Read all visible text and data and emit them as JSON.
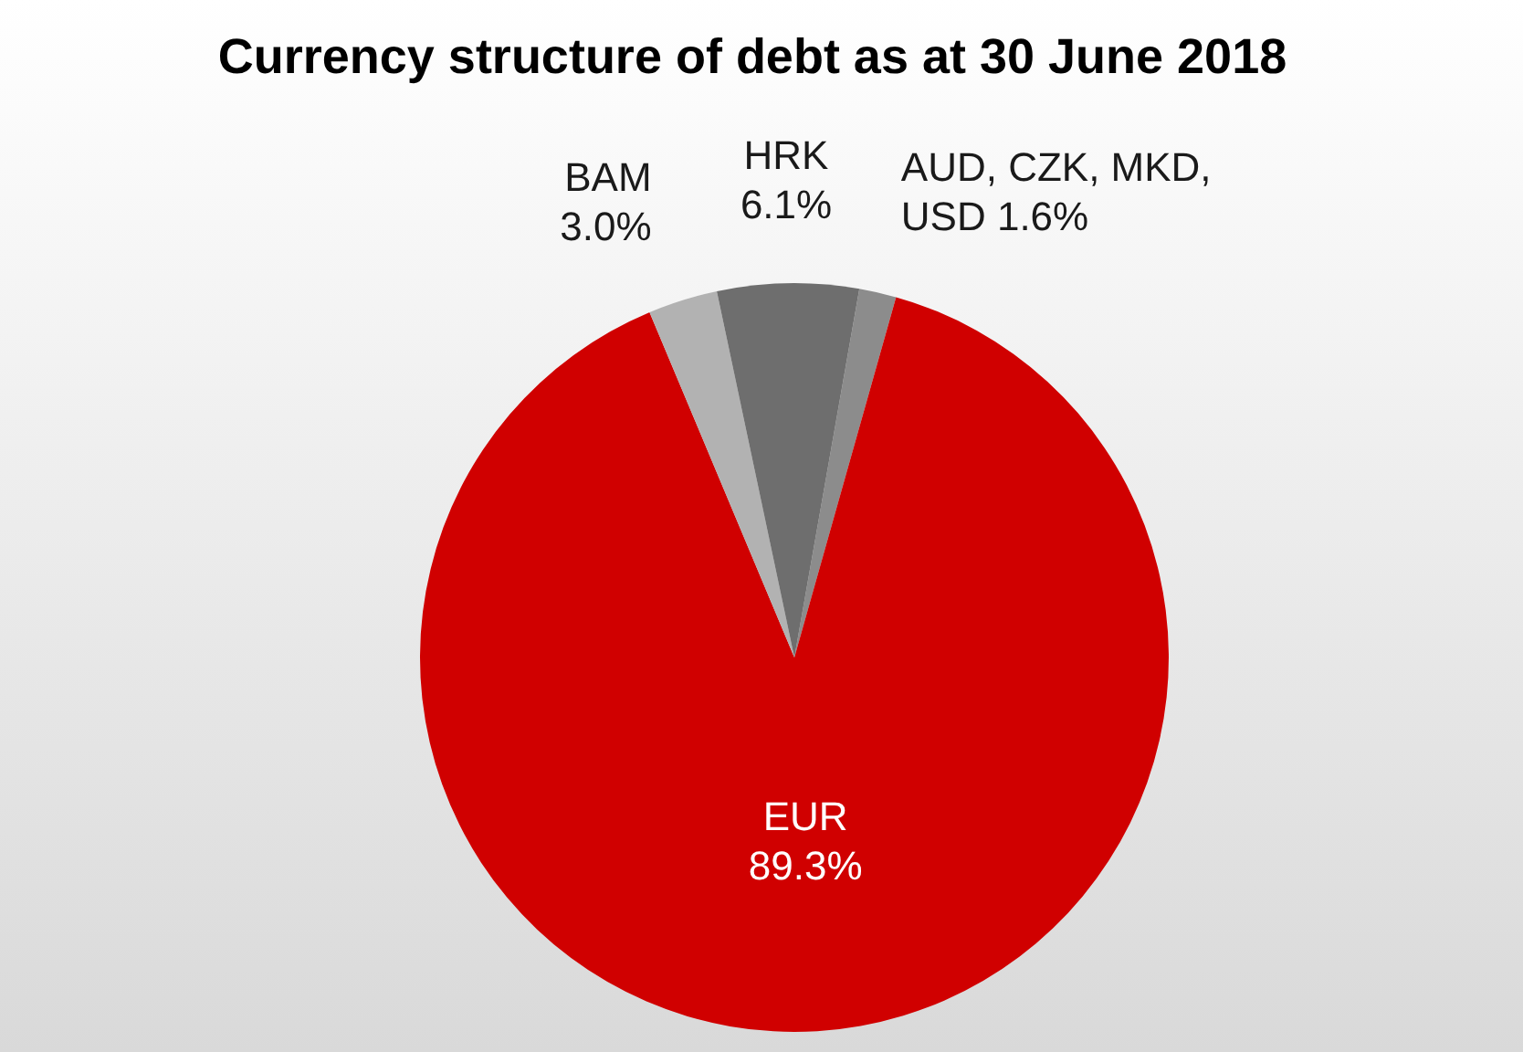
{
  "chart_data": {
    "type": "pie",
    "title": "Currency structure of debt as at 30 June 2018",
    "categories": [
      "AUD, CZK, MKD, USD",
      "EUR",
      "BAM",
      "HRK"
    ],
    "values": [
      1.6,
      89.3,
      3.0,
      6.1
    ],
    "value_labels": [
      "1.6%",
      "89.3%",
      "3.0%",
      "6.1%"
    ],
    "colors": [
      "#8c8c8c",
      "#d00000",
      "#b2b2b2",
      "#6e6e6e"
    ],
    "legend": false
  }
}
